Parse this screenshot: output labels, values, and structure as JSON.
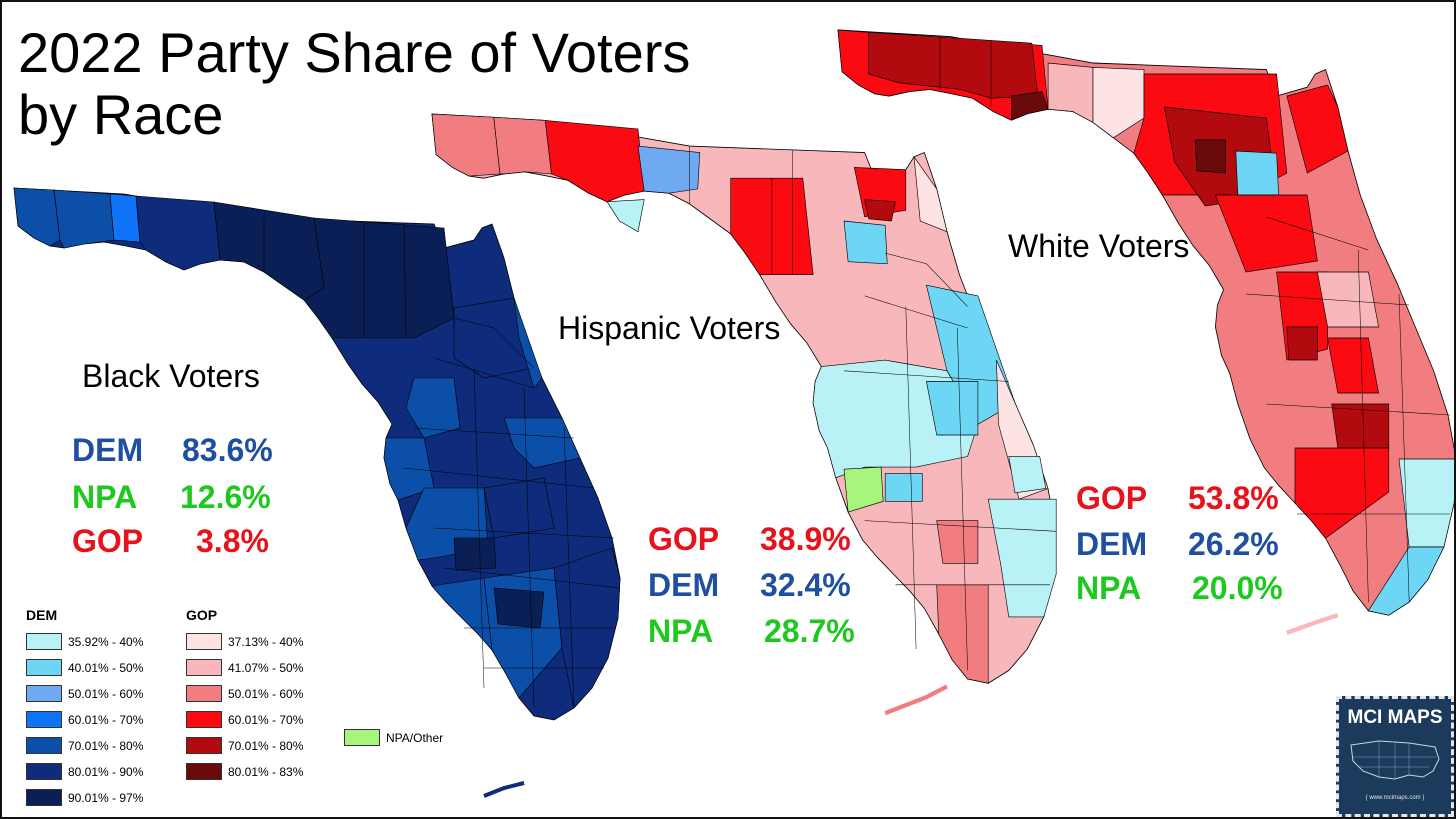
{
  "title_line1": "2022 Party Share of Voters",
  "title_line2": "by Race",
  "colors": {
    "dem_35_40": "#b8f2f7",
    "dem_40_50": "#6dd6f5",
    "dem_50_60": "#6fa9f2",
    "dem_60_70": "#0f74f7",
    "dem_70_80": "#0c4fa9",
    "dem_80_90": "#0f2b7c",
    "dem_90_97": "#0a1f55",
    "gop_37_40": "#fde3e4",
    "gop_41_50": "#f8b8bb",
    "gop_50_60": "#f27d80",
    "gop_60_70": "#fb0a12",
    "gop_70_80": "#b20a0f",
    "gop_80_83": "#6b0a0a",
    "npa": "#a7f57c",
    "dem_text": "#1f4fa0",
    "npa_text": "#1fc81f",
    "gop_text": "#e8121a",
    "badge": "#1b3a5c"
  },
  "maps": {
    "black": {
      "label": "Black Voters",
      "stats": [
        {
          "party": "DEM",
          "pct": "83.6%"
        },
        {
          "party": "NPA",
          "pct": "12.6%"
        },
        {
          "party": "GOP",
          "pct": "3.8%"
        }
      ]
    },
    "hispanic": {
      "label": "Hispanic Voters",
      "stats": [
        {
          "party": "GOP",
          "pct": "38.9%"
        },
        {
          "party": "DEM",
          "pct": "32.4%"
        },
        {
          "party": "NPA",
          "pct": "28.7%"
        }
      ]
    },
    "white": {
      "label": "White Voters",
      "stats": [
        {
          "party": "GOP",
          "pct": "53.8%"
        },
        {
          "party": "DEM",
          "pct": "26.2%"
        },
        {
          "party": "NPA",
          "pct": "20.0%"
        }
      ]
    }
  },
  "legend": {
    "dem_head": "DEM",
    "gop_head": "GOP",
    "dem_items": [
      "35.92% - 40%",
      "40.01% - 50%",
      "50.01% - 60%",
      "60.01% - 70%",
      "70.01% - 80%",
      "80.01% - 90%",
      "90.01% - 97%"
    ],
    "gop_items": [
      "37.13% - 40%",
      "41.07% - 50%",
      "50.01% - 60%",
      "60.01% - 70%",
      "70.01% - 80%",
      "80.01% - 83%"
    ],
    "npa_item": "NPA/Other"
  },
  "badge": {
    "title": "MCI MAPS",
    "url": "{ www.mcimaps.com }"
  }
}
